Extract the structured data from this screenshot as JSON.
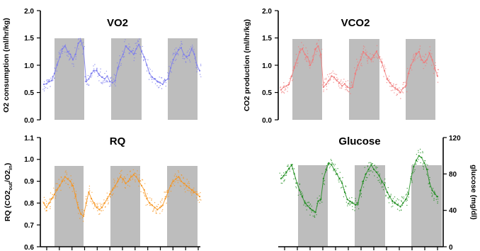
{
  "chart_data": [
    {
      "id": "vo2",
      "type": "scatter",
      "title": "VO2",
      "ylabel": "O2 consumption (ml/hr/kg)",
      "ylim": [
        0.0,
        2.0
      ],
      "yticks": [
        "0.0",
        "0.5",
        "1.0",
        "1.5",
        "2.0"
      ],
      "yaxis_side": "left",
      "color": "#7b7bef",
      "dark_band_level": 1.48,
      "series": [
        {
          "values": [
            0.65,
            0.66,
            0.7,
            0.72,
            0.85,
            1.0,
            1.15,
            1.3,
            1.35,
            1.25,
            1.2,
            1.1,
            1.2,
            1.4,
            1.45,
            1.3,
            0.7,
            0.75,
            0.85,
            0.9,
            0.9,
            0.82,
            0.78,
            0.75,
            0.8,
            0.7,
            0.68,
            0.72,
            0.95,
            1.1,
            1.2,
            1.35,
            1.3,
            1.25,
            1.2,
            1.3,
            1.38,
            1.25,
            1.15,
            1.0,
            0.85,
            0.78,
            0.75,
            0.7,
            0.68,
            0.65,
            0.72,
            0.75,
            0.95,
            1.1,
            1.2,
            1.28,
            1.32,
            1.2,
            1.15,
            1.18,
            1.3,
            1.2,
            1.0,
            0.9
          ]
        }
      ]
    },
    {
      "id": "vco2",
      "type": "scatter",
      "title": "VCO2",
      "ylabel": "CO2 production (ml/hr/kg)",
      "ylim": [
        0.0,
        2.0
      ],
      "yticks": [
        "0.0",
        "0.5",
        "1.0",
        "1.5",
        "2.0"
      ],
      "yaxis_side": "left",
      "color": "#f07a7a",
      "dark_band_level": 1.46,
      "series": [
        {
          "values": [
            0.55,
            0.6,
            0.62,
            0.65,
            0.8,
            0.95,
            1.1,
            1.25,
            1.3,
            1.2,
            1.15,
            1.0,
            1.1,
            1.3,
            1.35,
            1.2,
            0.6,
            0.65,
            0.72,
            0.8,
            0.78,
            0.72,
            0.68,
            0.62,
            0.66,
            0.6,
            0.58,
            0.6,
            0.85,
            1.0,
            1.1,
            1.25,
            1.2,
            1.15,
            1.1,
            1.18,
            1.25,
            1.15,
            1.05,
            0.9,
            0.75,
            0.68,
            0.62,
            0.58,
            0.55,
            0.5,
            0.58,
            0.62,
            0.85,
            1.0,
            1.1,
            1.2,
            1.25,
            1.1,
            1.05,
            1.1,
            1.22,
            1.1,
            0.95,
            0.8
          ]
        }
      ]
    },
    {
      "id": "rq",
      "type": "scatter",
      "title": "RQ",
      "ylabel": "RQ (CO2out/O2in)",
      "ylabel_parts": {
        "a": "RQ (CO2",
        "b": "out",
        "c": "/O2",
        "d": "in",
        "e": ")"
      },
      "ylim": [
        0.6,
        1.1
      ],
      "yticks": [
        "0.6",
        "0.7",
        "0.8",
        "0.9",
        "1.0",
        "1.1"
      ],
      "yaxis_side": "left",
      "color": "#f7941d",
      "dark_band_level": 0.965,
      "series": [
        {
          "values": [
            0.8,
            0.78,
            0.8,
            0.82,
            0.84,
            0.86,
            0.88,
            0.9,
            0.92,
            0.91,
            0.9,
            0.88,
            0.83,
            0.78,
            0.75,
            0.74,
            0.8,
            0.85,
            0.82,
            0.8,
            0.78,
            0.77,
            0.78,
            0.8,
            0.82,
            0.84,
            0.86,
            0.88,
            0.9,
            0.92,
            0.91,
            0.89,
            0.9,
            0.92,
            0.93,
            0.92,
            0.9,
            0.88,
            0.86,
            0.82,
            0.8,
            0.79,
            0.78,
            0.77,
            0.78,
            0.79,
            0.82,
            0.85,
            0.88,
            0.9,
            0.91,
            0.92,
            0.9,
            0.89,
            0.88,
            0.87,
            0.86,
            0.85,
            0.84,
            0.83
          ]
        }
      ]
    },
    {
      "id": "glucose",
      "type": "scatter",
      "title": "Glucose",
      "ylabel": "glucose (mg/dl)",
      "ylim": [
        0,
        120
      ],
      "yticks": [
        "0",
        "40",
        "80",
        "120"
      ],
      "yaxis_side": "right",
      "color": "#1a8c1a",
      "dark_band_level": 89,
      "series": [
        {
          "values": [
            75,
            78,
            82,
            86,
            90,
            80,
            70,
            62,
            55,
            48,
            45,
            42,
            40,
            38,
            50,
            52,
            75,
            85,
            92,
            90,
            85,
            80,
            75,
            70,
            60,
            52,
            50,
            48,
            46,
            48,
            62,
            72,
            80,
            85,
            90,
            85,
            82,
            78,
            72,
            68,
            60,
            55,
            50,
            48,
            46,
            44,
            48,
            52,
            58,
            75,
            88,
            95,
            100,
            98,
            92,
            85,
            70,
            62,
            58,
            55
          ]
        }
      ]
    }
  ]
}
